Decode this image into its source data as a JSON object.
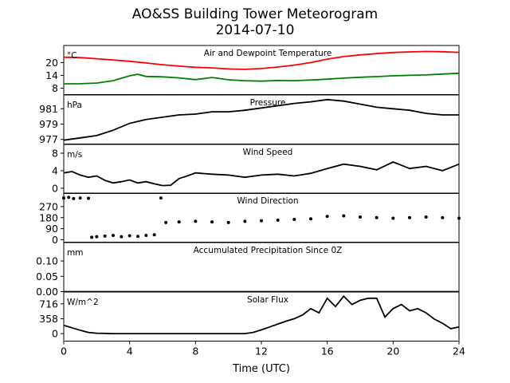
{
  "figure": {
    "title_line1": "AO&SS Building Tower Meteorogram",
    "title_line2": "2014-07-10",
    "xlabel": "Time (UTC)",
    "xticks": [
      0,
      4,
      8,
      12,
      16,
      20,
      24
    ],
    "xlim": [
      0,
      24
    ]
  },
  "chart_data": [
    {
      "type": "line",
      "title": "Air and Dewpoint Temperature",
      "unit_label": "°C",
      "yticks": [
        8,
        14,
        20
      ],
      "ylim": [
        5,
        28
      ],
      "grid": false,
      "series": [
        {
          "color": "#ff0000",
          "x": [
            0,
            1,
            2,
            3,
            4,
            5,
            6,
            7,
            8,
            9,
            10,
            11,
            12,
            13,
            14,
            15,
            16,
            17,
            18,
            19,
            20,
            21,
            22,
            23,
            24
          ],
          "y": [
            22.5,
            22.3,
            21.8,
            21.2,
            20.6,
            19.8,
            19.0,
            18.3,
            17.8,
            17.5,
            17.0,
            16.8,
            17.2,
            17.9,
            18.8,
            20.0,
            21.6,
            22.8,
            23.6,
            24.2,
            24.7,
            25.0,
            25.2,
            25.1,
            24.8
          ]
        },
        {
          "color": "#008000",
          "x": [
            0,
            1,
            2,
            3,
            4,
            4.5,
            5,
            6,
            7,
            8,
            9,
            10,
            11,
            12,
            13,
            14,
            15,
            16,
            17,
            18,
            19,
            20,
            21,
            22,
            23,
            24
          ],
          "y": [
            10.0,
            10.1,
            10.4,
            11.5,
            13.8,
            14.5,
            13.5,
            13.3,
            12.8,
            12.0,
            13.0,
            11.9,
            11.5,
            11.3,
            11.6,
            11.5,
            11.8,
            12.2,
            12.7,
            13.1,
            13.4,
            13.8,
            14.0,
            14.2,
            14.6,
            15.0
          ]
        }
      ]
    },
    {
      "type": "line",
      "title": "Pressure",
      "unit_label": "hPa",
      "yticks": [
        977,
        979,
        981
      ],
      "ylim": [
        976.4,
        982.8
      ],
      "grid": false,
      "series": [
        {
          "color": "#000000",
          "x": [
            0,
            1,
            2,
            3,
            4,
            5,
            6,
            7,
            8,
            9,
            10,
            11,
            12,
            13,
            14,
            15,
            16,
            17,
            18,
            19,
            20,
            21,
            22,
            23,
            24
          ],
          "y": [
            976.9,
            977.2,
            977.5,
            978.2,
            979.1,
            979.6,
            979.9,
            980.2,
            980.3,
            980.6,
            980.6,
            980.8,
            981.1,
            981.4,
            981.7,
            981.9,
            982.2,
            982.0,
            981.6,
            981.2,
            981.0,
            980.8,
            980.4,
            980.2,
            980.2
          ]
        }
      ]
    },
    {
      "type": "line",
      "title": "Wind Speed",
      "unit_label": "m/s",
      "yticks": [
        0,
        4,
        8
      ],
      "ylim": [
        -1.2,
        10
      ],
      "grid": false,
      "series": [
        {
          "color": "#000000",
          "x": [
            0,
            0.5,
            1,
            1.5,
            2,
            2.5,
            3,
            3.5,
            4,
            4.5,
            5,
            5.5,
            6,
            6.5,
            7,
            7.5,
            8,
            9,
            10,
            11,
            12,
            13,
            14,
            15,
            16,
            17,
            18,
            19,
            20,
            21,
            22,
            23,
            24
          ],
          "y": [
            3.5,
            3.8,
            3.0,
            2.5,
            2.8,
            1.8,
            1.2,
            1.5,
            1.9,
            1.2,
            1.5,
            1.0,
            0.6,
            0.7,
            2.2,
            2.8,
            3.5,
            3.2,
            3.0,
            2.5,
            3.0,
            3.2,
            2.8,
            3.4,
            4.5,
            5.5,
            5.0,
            4.2,
            6.0,
            4.5,
            5.0,
            4.0,
            5.5
          ]
        }
      ]
    },
    {
      "type": "scatter",
      "title": "Wind Direction",
      "unit_label": "",
      "yticks": [
        0,
        90,
        180,
        270
      ],
      "ylim": [
        -20,
        380
      ],
      "grid": false,
      "series": [
        {
          "color": "#000000",
          "x": [
            0,
            0.3,
            0.6,
            1.0,
            1.5,
            1.7,
            2.0,
            2.5,
            3.0,
            3.5,
            4.0,
            4.5,
            5.0,
            5.5,
            5.9,
            6.2,
            7,
            8,
            9,
            10,
            11,
            12,
            13,
            14,
            15,
            16,
            17,
            18,
            19,
            20,
            21,
            22,
            23,
            24
          ],
          "y": [
            340,
            345,
            335,
            340,
            338,
            20,
            25,
            30,
            35,
            25,
            32,
            28,
            35,
            40,
            340,
            140,
            145,
            150,
            145,
            140,
            150,
            155,
            160,
            165,
            170,
            190,
            195,
            185,
            180,
            175,
            180,
            185,
            180,
            175
          ]
        }
      ]
    },
    {
      "type": "line",
      "title": "Accumulated Precipitation Since 0Z",
      "unit_label": "mm",
      "yticks": [
        0.0,
        0.05,
        0.1
      ],
      "ylim": [
        0,
        0.16
      ],
      "grid": false,
      "series": [
        {
          "color": "#000000",
          "x": [
            0,
            24
          ],
          "y": [
            0,
            0
          ]
        }
      ]
    },
    {
      "type": "line",
      "title": "Solar Flux",
      "unit_label": "W/m^2",
      "yticks": [
        0,
        358,
        716
      ],
      "ylim": [
        -180,
        1000
      ],
      "grid": false,
      "series": [
        {
          "color": "#000000",
          "x": [
            0,
            0.5,
            1,
            1.5,
            2,
            3,
            4,
            6,
            8,
            10,
            11,
            11.5,
            12,
            12.5,
            13,
            13.5,
            14,
            14.5,
            15,
            15.5,
            16,
            16.5,
            17,
            17.5,
            18,
            18.5,
            19,
            19.5,
            20,
            20.5,
            21,
            21.5,
            22,
            22.5,
            23,
            23.5,
            24
          ],
          "y": [
            200,
            140,
            80,
            30,
            10,
            0,
            0,
            0,
            0,
            0,
            0,
            30,
            90,
            160,
            230,
            300,
            360,
            450,
            600,
            500,
            850,
            650,
            900,
            700,
            800,
            850,
            850,
            400,
            600,
            700,
            550,
            600,
            500,
            350,
            250,
            120,
            160
          ]
        }
      ]
    }
  ]
}
